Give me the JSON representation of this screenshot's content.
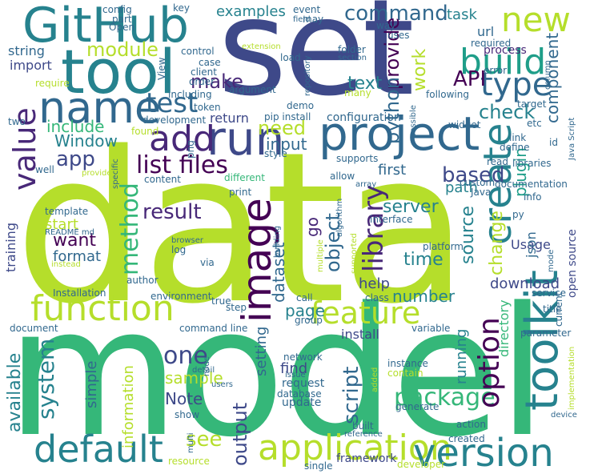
{
  "palette": {
    "yellow_green": "#b5de2b",
    "green": "#35b779",
    "teal": "#26828e",
    "blue": "#31688e",
    "indigo": "#3e4989",
    "purple": "#482878",
    "dark": "#440154",
    "light_green": "#6ece58",
    "cyan": "#1f9e89"
  },
  "words": [
    {
      "text": "data"
    },
    {
      "text": "model"
    },
    {
      "text": "set"
    },
    {
      "text": "GitHub"
    },
    {
      "text": "tool"
    },
    {
      "text": "project"
    },
    {
      "text": "name"
    },
    {
      "text": "build"
    },
    {
      "text": "function"
    },
    {
      "text": "feature"
    },
    {
      "text": "image"
    },
    {
      "text": "toolkit"
    },
    {
      "text": "run"
    },
    {
      "text": "add"
    },
    {
      "text": "new"
    },
    {
      "text": "test"
    },
    {
      "text": "type"
    },
    {
      "text": "create"
    },
    {
      "text": "default"
    },
    {
      "text": "application"
    },
    {
      "text": "version"
    },
    {
      "text": "package"
    },
    {
      "text": "option"
    },
    {
      "text": "value"
    },
    {
      "text": "library"
    },
    {
      "text": "method"
    },
    {
      "text": "list files"
    },
    {
      "text": "command"
    },
    {
      "text": "module"
    },
    {
      "text": "make"
    },
    {
      "text": "provide"
    },
    {
      "text": "API"
    },
    {
      "text": "check"
    },
    {
      "text": "text"
    },
    {
      "text": "work"
    },
    {
      "text": "python"
    },
    {
      "text": "component"
    },
    {
      "text": "need"
    },
    {
      "text": "input"
    },
    {
      "text": "include"
    },
    {
      "text": "Window"
    },
    {
      "text": "app"
    },
    {
      "text": "based"
    },
    {
      "text": "result"
    },
    {
      "text": "want"
    },
    {
      "text": "start"
    },
    {
      "text": "format"
    },
    {
      "text": "server"
    },
    {
      "text": "source"
    },
    {
      "text": "time"
    },
    {
      "text": "object"
    },
    {
      "text": "change"
    },
    {
      "text": "dataset"
    },
    {
      "text": "system"
    },
    {
      "text": "available"
    },
    {
      "text": "output"
    },
    {
      "text": "one"
    },
    {
      "text": "sample"
    },
    {
      "text": "Note"
    },
    {
      "text": "script"
    },
    {
      "text": "running"
    },
    {
      "text": "directory"
    },
    {
      "text": "plugin"
    },
    {
      "text": "path"
    },
    {
      "text": "first"
    },
    {
      "text": "help"
    },
    {
      "text": "page"
    },
    {
      "text": "number"
    },
    {
      "text": "download"
    },
    {
      "text": "find"
    },
    {
      "text": "setting"
    },
    {
      "text": "information"
    },
    {
      "text": "simple"
    },
    {
      "text": "install"
    },
    {
      "text": "examples"
    },
    {
      "text": "task"
    },
    {
      "text": "url"
    },
    {
      "text": "process"
    },
    {
      "text": "string"
    },
    {
      "text": "import"
    },
    {
      "text": "return"
    },
    {
      "text": "configuration"
    },
    {
      "text": "request"
    },
    {
      "text": "update"
    },
    {
      "text": "see"
    },
    {
      "text": "framework"
    },
    {
      "text": "go"
    },
    {
      "text": "training"
    },
    {
      "text": "Usage"
    },
    {
      "text": "json"
    },
    {
      "text": "open source"
    },
    {
      "text": "key"
    },
    {
      "text": "config"
    },
    {
      "text": "part"
    },
    {
      "text": "event"
    },
    {
      "text": "may"
    },
    {
      "text": "field"
    },
    {
      "text": "way"
    },
    {
      "text": "uses"
    },
    {
      "text": "Open"
    },
    {
      "text": "required"
    },
    {
      "text": "control"
    },
    {
      "text": "case"
    },
    {
      "text": "client"
    },
    {
      "text": "extension"
    },
    {
      "text": "load"
    },
    {
      "text": "folder"
    },
    {
      "text": "section"
    },
    {
      "text": "error"
    },
    {
      "text": "View"
    },
    {
      "text": "repository"
    },
    {
      "text": "many"
    },
    {
      "text": "order"
    },
    {
      "text": "including"
    },
    {
      "text": "argument"
    },
    {
      "text": "token"
    },
    {
      "text": "demo"
    },
    {
      "text": "pip install"
    },
    {
      "text": "following"
    },
    {
      "text": "target"
    },
    {
      "text": "require"
    },
    {
      "text": "development"
    },
    {
      "text": "found"
    },
    {
      "text": "possible"
    },
    {
      "text": "widget"
    },
    {
      "text": "etc"
    },
    {
      "text": "link"
    },
    {
      "text": "define"
    },
    {
      "text": "id"
    },
    {
      "text": "Java Script"
    },
    {
      "text": "two"
    },
    {
      "text": "png"
    },
    {
      "text": "style"
    },
    {
      "text": "supports"
    },
    {
      "text": "well"
    },
    {
      "text": "provided"
    },
    {
      "text": "specific"
    },
    {
      "text": "content"
    },
    {
      "text": "different"
    },
    {
      "text": "allow"
    },
    {
      "text": "array"
    },
    {
      "text": "read"
    },
    {
      "text": "libraries"
    },
    {
      "text": "custom"
    },
    {
      "text": "Java"
    },
    {
      "text": "documentation"
    },
    {
      "text": "template"
    },
    {
      "text": "print"
    },
    {
      "text": "building"
    },
    {
      "text": "algorithm"
    },
    {
      "text": "supported"
    },
    {
      "text": "interface"
    },
    {
      "text": "info"
    },
    {
      "text": "py"
    },
    {
      "text": "README md"
    },
    {
      "text": "log"
    },
    {
      "text": "browser"
    },
    {
      "text": "via"
    },
    {
      "text": "multiple"
    },
    {
      "text": "platform"
    },
    {
      "text": "mode"
    },
    {
      "text": "instead"
    },
    {
      "text": "author"
    },
    {
      "text": "Installation"
    },
    {
      "text": "environment"
    },
    {
      "text": "true"
    },
    {
      "text": "call"
    },
    {
      "text": "class"
    },
    {
      "text": "column"
    },
    {
      "text": "service"
    },
    {
      "text": "current"
    },
    {
      "text": "title"
    },
    {
      "text": "step"
    },
    {
      "text": "group"
    },
    {
      "text": "document"
    },
    {
      "text": "command line"
    },
    {
      "text": "variable"
    },
    {
      "text": "parameter"
    },
    {
      "text": "implementation"
    },
    {
      "text": "node"
    },
    {
      "text": "detail"
    },
    {
      "text": "users"
    },
    {
      "text": "network"
    },
    {
      "text": "issue"
    },
    {
      "text": "database"
    },
    {
      "text": "instance"
    },
    {
      "text": "contain"
    },
    {
      "text": "added"
    },
    {
      "text": "generate"
    },
    {
      "text": "show"
    },
    {
      "text": "built"
    },
    {
      "text": "reference"
    },
    {
      "text": "action"
    },
    {
      "text": "device"
    },
    {
      "text": "resource"
    },
    {
      "text": "single"
    },
    {
      "text": "created"
    },
    {
      "text": "developer"
    },
    {
      "text": "multi"
    }
  ]
}
